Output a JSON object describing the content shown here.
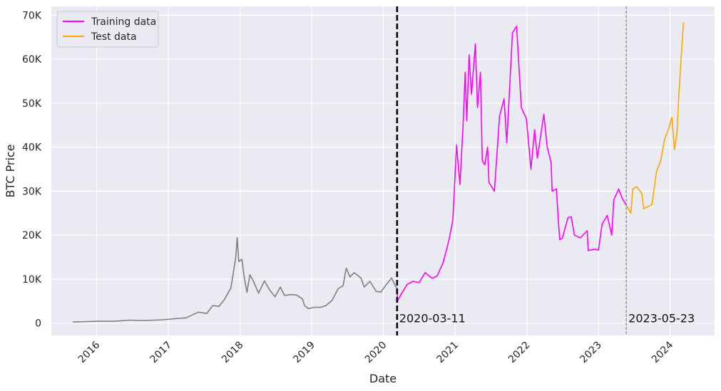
{
  "chart_data": {
    "type": "line",
    "title": "",
    "xlabel": "Date",
    "ylabel": "BTC Price",
    "xlim": [
      "2015-05-15",
      "2024-08-15"
    ],
    "ylim": [
      -2800,
      72000
    ],
    "grid": true,
    "legend_position": "top-left",
    "x_ticks": [
      "2016-01-01",
      "2017-01-01",
      "2018-01-01",
      "2019-01-01",
      "2020-01-01",
      "2021-01-01",
      "2022-01-01",
      "2023-01-01",
      "2024-01-01"
    ],
    "x_tick_labels": [
      "2016",
      "2017",
      "2018",
      "2019",
      "2020",
      "2021",
      "2022",
      "2023",
      "2024"
    ],
    "y_ticks": [
      0,
      10000,
      20000,
      30000,
      40000,
      50000,
      60000,
      70000
    ],
    "y_tick_labels": [
      "0",
      "10K",
      "20K",
      "30K",
      "40K",
      "50K",
      "60K",
      "70K"
    ],
    "series": [
      {
        "name": "",
        "color": "#808080",
        "points": [
          [
            "2015-09-01",
            250
          ],
          [
            "2015-11-15",
            350
          ],
          [
            "2016-01-15",
            420
          ],
          [
            "2016-04-01",
            430
          ],
          [
            "2016-06-15",
            680
          ],
          [
            "2016-09-01",
            600
          ],
          [
            "2016-12-01",
            760
          ],
          [
            "2017-02-01",
            1000
          ],
          [
            "2017-04-01",
            1200
          ],
          [
            "2017-06-01",
            2500
          ],
          [
            "2017-07-15",
            2200
          ],
          [
            "2017-08-15",
            4000
          ],
          [
            "2017-09-15",
            3800
          ],
          [
            "2017-10-15",
            5500
          ],
          [
            "2017-11-15",
            8000
          ],
          [
            "2017-12-10",
            15000
          ],
          [
            "2017-12-17",
            19400
          ],
          [
            "2017-12-25",
            14000
          ],
          [
            "2018-01-10",
            14500
          ],
          [
            "2018-01-20",
            11000
          ],
          [
            "2018-02-05",
            7000
          ],
          [
            "2018-02-20",
            11000
          ],
          [
            "2018-03-10",
            9500
          ],
          [
            "2018-04-05",
            6800
          ],
          [
            "2018-05-05",
            9600
          ],
          [
            "2018-06-01",
            7500
          ],
          [
            "2018-06-28",
            6000
          ],
          [
            "2018-07-25",
            8200
          ],
          [
            "2018-08-15",
            6300
          ],
          [
            "2018-09-15",
            6500
          ],
          [
            "2018-10-15",
            6400
          ],
          [
            "2018-11-15",
            5500
          ],
          [
            "2018-11-25",
            4000
          ],
          [
            "2018-12-15",
            3300
          ],
          [
            "2019-01-15",
            3600
          ],
          [
            "2019-02-15",
            3600
          ],
          [
            "2019-03-15",
            4000
          ],
          [
            "2019-04-15",
            5200
          ],
          [
            "2019-05-15",
            7800
          ],
          [
            "2019-06-10",
            8500
          ],
          [
            "2019-06-26",
            12500
          ],
          [
            "2019-07-15",
            10500
          ],
          [
            "2019-08-05",
            11500
          ],
          [
            "2019-09-10",
            10200
          ],
          [
            "2019-09-25",
            8200
          ],
          [
            "2019-10-25",
            9500
          ],
          [
            "2019-11-25",
            7200
          ],
          [
            "2019-12-20",
            7100
          ],
          [
            "2020-01-15",
            8700
          ],
          [
            "2020-02-12",
            10300
          ],
          [
            "2020-03-01",
            8500
          ],
          [
            "2020-03-11",
            7900
          ]
        ]
      },
      {
        "name": "Training data",
        "color": "#ff00ff",
        "points": [
          [
            "2020-03-11",
            7900
          ],
          [
            "2020-03-13",
            5000
          ],
          [
            "2020-04-01",
            6600
          ],
          [
            "2020-05-01",
            8800
          ],
          [
            "2020-06-01",
            9500
          ],
          [
            "2020-07-01",
            9200
          ],
          [
            "2020-08-01",
            11500
          ],
          [
            "2020-09-05",
            10200
          ],
          [
            "2020-10-01",
            10700
          ],
          [
            "2020-11-01",
            13800
          ],
          [
            "2020-12-01",
            19000
          ],
          [
            "2020-12-20",
            23500
          ],
          [
            "2021-01-08",
            40500
          ],
          [
            "2021-01-25",
            31500
          ],
          [
            "2021-02-10",
            45000
          ],
          [
            "2021-02-21",
            57000
          ],
          [
            "2021-03-01",
            46000
          ],
          [
            "2021-03-13",
            61000
          ],
          [
            "2021-03-25",
            52000
          ],
          [
            "2021-04-14",
            63500
          ],
          [
            "2021-04-25",
            49000
          ],
          [
            "2021-05-10",
            57000
          ],
          [
            "2021-05-19",
            37000
          ],
          [
            "2021-06-01",
            36000
          ],
          [
            "2021-06-15",
            40000
          ],
          [
            "2021-06-22",
            32000
          ],
          [
            "2021-07-20",
            30000
          ],
          [
            "2021-08-15",
            47000
          ],
          [
            "2021-09-07",
            51000
          ],
          [
            "2021-09-21",
            41000
          ],
          [
            "2021-10-20",
            66000
          ],
          [
            "2021-11-10",
            67500
          ],
          [
            "2021-12-04",
            49000
          ],
          [
            "2021-12-30",
            46500
          ],
          [
            "2022-01-22",
            35000
          ],
          [
            "2022-02-10",
            44000
          ],
          [
            "2022-02-24",
            37500
          ],
          [
            "2022-03-29",
            47500
          ],
          [
            "2022-04-15",
            40000
          ],
          [
            "2022-05-05",
            36500
          ],
          [
            "2022-05-10",
            30000
          ],
          [
            "2022-06-01",
            30500
          ],
          [
            "2022-06-13",
            22000
          ],
          [
            "2022-06-18",
            19000
          ],
          [
            "2022-07-01",
            19300
          ],
          [
            "2022-07-30",
            24000
          ],
          [
            "2022-08-15",
            24200
          ],
          [
            "2022-09-01",
            20000
          ],
          [
            "2022-10-01",
            19400
          ],
          [
            "2022-11-05",
            21000
          ],
          [
            "2022-11-10",
            16500
          ],
          [
            "2022-12-15",
            16800
          ],
          [
            "2023-01-01",
            16600
          ],
          [
            "2023-01-20",
            22500
          ],
          [
            "2023-02-15",
            24500
          ],
          [
            "2023-03-10",
            20000
          ],
          [
            "2023-03-20",
            28000
          ],
          [
            "2023-04-14",
            30500
          ],
          [
            "2023-05-01",
            28500
          ],
          [
            "2023-05-23",
            26800
          ]
        ]
      },
      {
        "name": "Test data",
        "color": "#ffa500",
        "points": [
          [
            "2023-05-23",
            26800
          ],
          [
            "2023-06-15",
            25000
          ],
          [
            "2023-06-25",
            30500
          ],
          [
            "2023-07-15",
            31000
          ],
          [
            "2023-08-10",
            29500
          ],
          [
            "2023-08-20",
            26000
          ],
          [
            "2023-09-15",
            26600
          ],
          [
            "2023-10-01",
            27000
          ],
          [
            "2023-10-24",
            34500
          ],
          [
            "2023-11-15",
            37000
          ],
          [
            "2023-12-05",
            42000
          ],
          [
            "2023-12-20",
            43500
          ],
          [
            "2024-01-11",
            46800
          ],
          [
            "2024-01-23",
            39500
          ],
          [
            "2024-02-05",
            43000
          ],
          [
            "2024-02-15",
            52000
          ],
          [
            "2024-02-28",
            61000
          ],
          [
            "2024-03-06",
            66000
          ],
          [
            "2024-03-10",
            68400
          ]
        ]
      }
    ],
    "annotations": [
      {
        "x": "2020-03-11",
        "label": "2020-03-11",
        "style": "thick-dashed",
        "color": "#000000"
      },
      {
        "x": "2023-05-23",
        "label": "2023-05-23",
        "style": "thin-dashed",
        "color": "#808080"
      }
    ]
  }
}
